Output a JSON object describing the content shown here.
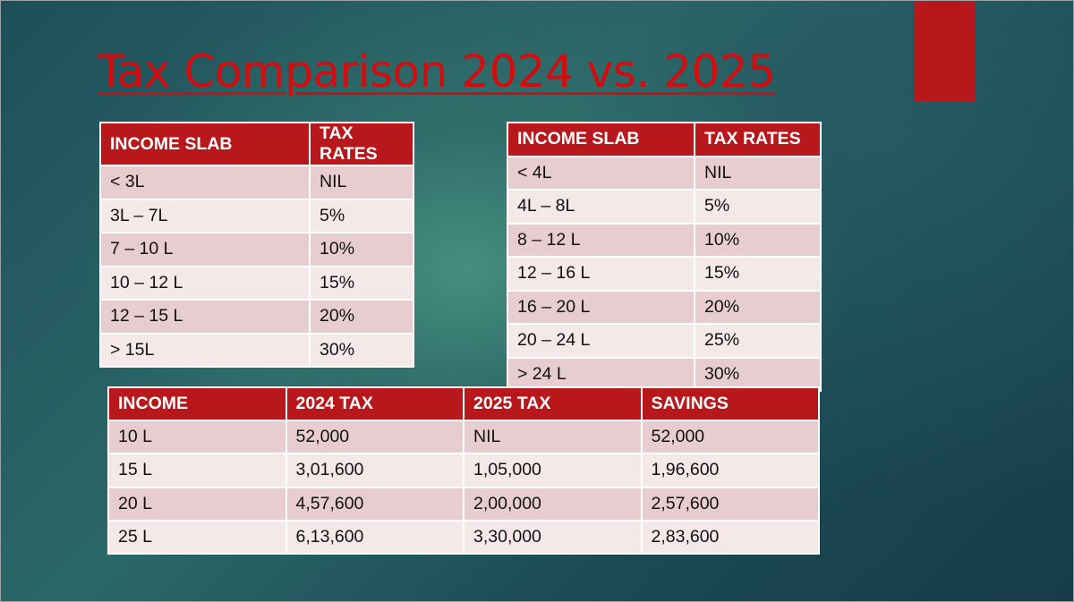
{
  "slide": {
    "title": "Tax Comparison 2024 vs. 2025"
  },
  "colors": {
    "accent": "#b8171b",
    "title": "#d20d10",
    "row_dark": "#e8cdd0",
    "row_light": "#f4e8e9"
  },
  "table_2024": {
    "headers": [
      "INCOME SLAB",
      "TAX RATES"
    ],
    "rows": [
      [
        "< 3L",
        "NIL"
      ],
      [
        "3L – 7L",
        "5%"
      ],
      [
        "7 – 10 L",
        "10%"
      ],
      [
        "10 – 12 L",
        "15%"
      ],
      [
        "12 – 15 L",
        "20%"
      ],
      [
        "> 15L",
        "30%"
      ]
    ]
  },
  "table_2025": {
    "headers": [
      "INCOME SLAB",
      "TAX RATES"
    ],
    "rows": [
      [
        "< 4L",
        "NIL"
      ],
      [
        "4L – 8L",
        "5%"
      ],
      [
        "8 – 12 L",
        "10%"
      ],
      [
        "12 – 16 L",
        "15%"
      ],
      [
        "16 – 20 L",
        "20%"
      ],
      [
        "20 – 24 L",
        "25%"
      ],
      [
        "> 24 L",
        "30%"
      ]
    ]
  },
  "comparison_table": {
    "headers": [
      "INCOME",
      "2024 TAX",
      "2025 TAX",
      "SAVINGS"
    ],
    "rows": [
      [
        "10 L",
        "52,000",
        "NIL",
        "52,000"
      ],
      [
        "15 L",
        "3,01,600",
        "1,05,000",
        "1,96,600"
      ],
      [
        "20 L",
        "4,57,600",
        "2,00,000",
        "2,57,600"
      ],
      [
        "25 L",
        "6,13,600",
        "3,30,000",
        "2,83,600"
      ]
    ]
  }
}
